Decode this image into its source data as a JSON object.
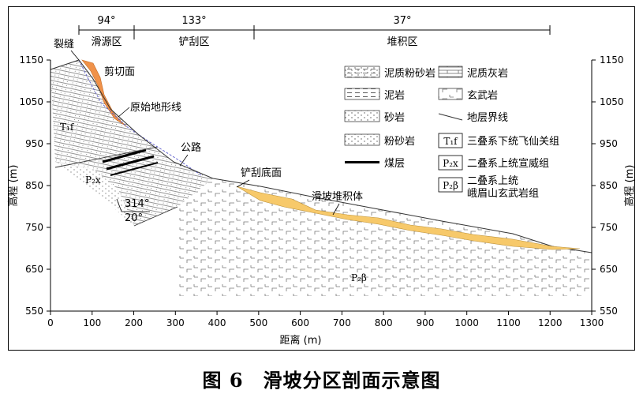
{
  "caption": "图 6　滑坡分区剖面示意图",
  "zones": [
    {
      "angle": "94°",
      "label": "滑源区"
    },
    {
      "angle": "133°",
      "label": "铲刮区"
    },
    {
      "angle": "37°",
      "label": "堆积区"
    }
  ],
  "axes": {
    "xlabel": "距离 (m)",
    "ylabel": "高程 (m)",
    "x_ticks": [
      "0",
      "100",
      "200",
      "300",
      "400",
      "500",
      "600",
      "700",
      "800",
      "900",
      "1000",
      "1100",
      "1200",
      "1300"
    ],
    "y_ticks": [
      "1150",
      "1050",
      "950",
      "850",
      "750",
      "650",
      "550"
    ]
  },
  "annotations": {
    "crack": "裂缝",
    "shear": "剪切面",
    "original": "原始地形线",
    "road": "公路",
    "scrape_base": "铲刮底面",
    "deposit": "滑坡堆积体",
    "t1f": "T₁f",
    "p2x": "P₂x",
    "p2b": "P₂β",
    "dip_dir": "314°",
    "dip": "20°"
  },
  "legend": [
    {
      "code": "",
      "label": "泥质粉砂岩",
      "pattern": "muddy-siltstone"
    },
    {
      "code": "",
      "label": "泥质灰岩",
      "pattern": "muddy-limestone"
    },
    {
      "code": "",
      "label": "泥岩",
      "pattern": "mudstone"
    },
    {
      "code": "",
      "label": "玄武岩",
      "pattern": "basalt"
    },
    {
      "code": "",
      "label": "砂岩",
      "pattern": "sandstone"
    },
    {
      "code": "",
      "label": "地层界线",
      "pattern": "boundary"
    },
    {
      "code": "",
      "label": "粉砂岩",
      "pattern": "siltstone"
    },
    {
      "code": "T₁f",
      "label": "三叠系下统飞仙关组",
      "pattern": "code"
    },
    {
      "code": "",
      "label": "煤层",
      "pattern": "coal"
    },
    {
      "code": "P₂x",
      "label": "二叠系上统宣威组",
      "pattern": "code"
    },
    {
      "code": "P₂β",
      "label": "二叠系上统",
      "label2": "峨眉山玄武岩组",
      "pattern": "code"
    }
  ],
  "colors": {
    "shear_fill": "#f0924a",
    "deposit_fill": "#f7c96a",
    "road_line": "#5a5acc"
  }
}
